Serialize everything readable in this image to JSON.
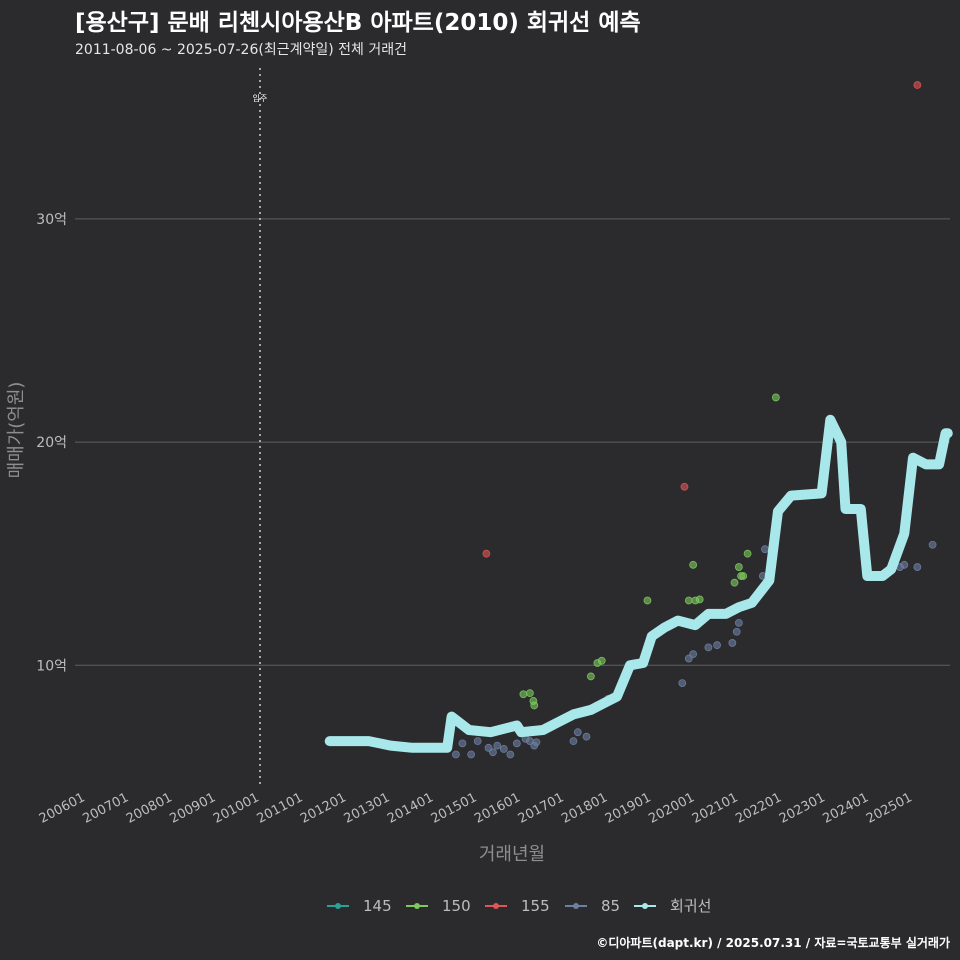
{
  "chart_data": {
    "type": "scatter",
    "title": "[용산구] 문배 리첸시아용산B 아파트(2010) 회귀선 예측",
    "subtitle": "2011-08-06 ~ 2025-07-26(최근계약일) 전체 거래건",
    "xlabel": "거래년월",
    "ylabel": "매매가(억원)",
    "ylim": [
      4.5,
      36
    ],
    "xlim": [
      2005.75,
      2025.85
    ],
    "y_ticks": [
      {
        "value": 10,
        "label": "10억"
      },
      {
        "value": 20,
        "label": "20억"
      },
      {
        "value": 30,
        "label": "30억"
      }
    ],
    "x_ticks": [
      {
        "value": 2006,
        "label": "200601"
      },
      {
        "value": 2007,
        "label": "200701"
      },
      {
        "value": 2008,
        "label": "200801"
      },
      {
        "value": 2009,
        "label": "200901"
      },
      {
        "value": 2010,
        "label": "201001"
      },
      {
        "value": 2011,
        "label": "201101"
      },
      {
        "value": 2012,
        "label": "201201"
      },
      {
        "value": 2013,
        "label": "201301"
      },
      {
        "value": 2014,
        "label": "201401"
      },
      {
        "value": 2015,
        "label": "201501"
      },
      {
        "value": 2016,
        "label": "201601"
      },
      {
        "value": 2017,
        "label": "201701"
      },
      {
        "value": 2018,
        "label": "201801"
      },
      {
        "value": 2019,
        "label": "201901"
      },
      {
        "value": 2020,
        "label": "202001"
      },
      {
        "value": 2021,
        "label": "202101"
      },
      {
        "value": 2022,
        "label": "202201"
      },
      {
        "value": 2023,
        "label": "202301"
      },
      {
        "value": 2024,
        "label": "202401"
      },
      {
        "value": 2025,
        "label": "202501"
      }
    ],
    "annotation": {
      "x": 2010.0,
      "label": "입주"
    },
    "legend_position": "bottom",
    "series": [
      {
        "name": "145",
        "color": "#2aa198",
        "points": []
      },
      {
        "name": "150",
        "color": "#7dc95e",
        "points": [
          [
            2016.05,
            8.7
          ],
          [
            2016.2,
            8.75
          ],
          [
            2016.28,
            8.4
          ],
          [
            2016.3,
            8.2
          ],
          [
            2017.6,
            9.5
          ],
          [
            2017.75,
            10.1
          ],
          [
            2017.85,
            10.2
          ],
          [
            2018.9,
            12.9
          ],
          [
            2019.85,
            12.9
          ],
          [
            2019.95,
            14.5
          ],
          [
            2020.0,
            12.9
          ],
          [
            2020.1,
            12.95
          ],
          [
            2020.9,
            13.7
          ],
          [
            2021.0,
            14.4
          ],
          [
            2021.05,
            14.0
          ],
          [
            2021.1,
            14.0
          ],
          [
            2021.2,
            15.0
          ],
          [
            2021.85,
            22.0
          ],
          [
            2024.9,
            17.4
          ]
        ]
      },
      {
        "name": "155",
        "color": "#e05555",
        "points": [
          [
            2015.2,
            15.0
          ],
          [
            2019.75,
            18.0
          ],
          [
            2025.1,
            36.0
          ]
        ]
      },
      {
        "name": "85",
        "color": "#6d7fa3",
        "points": [
          [
            2014.5,
            6.0
          ],
          [
            2014.65,
            6.5
          ],
          [
            2014.85,
            6.0
          ],
          [
            2015.0,
            6.6
          ],
          [
            2015.25,
            6.3
          ],
          [
            2015.35,
            6.1
          ],
          [
            2015.45,
            6.4
          ],
          [
            2015.6,
            6.25
          ],
          [
            2015.75,
            6.0
          ],
          [
            2015.9,
            6.5
          ],
          [
            2016.1,
            6.7
          ],
          [
            2016.2,
            6.6
          ],
          [
            2016.3,
            6.4
          ],
          [
            2016.35,
            6.55
          ],
          [
            2017.2,
            6.6
          ],
          [
            2017.3,
            7.0
          ],
          [
            2017.5,
            6.8
          ],
          [
            2018.0,
            8.5
          ],
          [
            2018.4,
            9.6
          ],
          [
            2019.7,
            9.2
          ],
          [
            2019.85,
            10.3
          ],
          [
            2019.95,
            10.5
          ],
          [
            2020.3,
            10.8
          ],
          [
            2020.5,
            10.9
          ],
          [
            2020.85,
            11.0
          ],
          [
            2020.95,
            11.5
          ],
          [
            2021.0,
            11.9
          ],
          [
            2021.55,
            14.0
          ],
          [
            2021.6,
            15.2
          ],
          [
            2024.7,
            14.4
          ],
          [
            2024.8,
            14.5
          ],
          [
            2025.1,
            14.4
          ],
          [
            2025.45,
            15.4
          ]
        ]
      }
    ],
    "regression": {
      "name": "회귀선",
      "color": "#a9e8ea",
      "points": [
        [
          2011.6,
          6.6
        ],
        [
          2012.1,
          6.6
        ],
        [
          2012.5,
          6.6
        ],
        [
          2013.0,
          6.4
        ],
        [
          2013.5,
          6.3
        ],
        [
          2014.0,
          6.3
        ],
        [
          2014.3,
          6.3
        ],
        [
          2014.4,
          7.7
        ],
        [
          2014.8,
          7.1
        ],
        [
          2015.3,
          7.0
        ],
        [
          2015.9,
          7.3
        ],
        [
          2016.0,
          7.0
        ],
        [
          2016.5,
          7.1
        ],
        [
          2016.8,
          7.4
        ],
        [
          2017.2,
          7.8
        ],
        [
          2017.6,
          8.0
        ],
        [
          2017.9,
          8.3
        ],
        [
          2018.2,
          8.6
        ],
        [
          2018.5,
          10.0
        ],
        [
          2018.8,
          10.1
        ],
        [
          2019.0,
          11.3
        ],
        [
          2019.3,
          11.7
        ],
        [
          2019.6,
          12.0
        ],
        [
          2020.0,
          11.8
        ],
        [
          2020.3,
          12.3
        ],
        [
          2020.7,
          12.3
        ],
        [
          2021.0,
          12.6
        ],
        [
          2021.3,
          12.8
        ],
        [
          2021.7,
          13.8
        ],
        [
          2021.9,
          16.9
        ],
        [
          2022.2,
          17.6
        ],
        [
          2022.9,
          17.7
        ],
        [
          2023.1,
          21.0
        ],
        [
          2023.35,
          20.0
        ],
        [
          2023.45,
          17.0
        ],
        [
          2023.8,
          17.0
        ],
        [
          2023.95,
          14.0
        ],
        [
          2024.3,
          14.0
        ],
        [
          2024.5,
          14.3
        ],
        [
          2024.8,
          15.9
        ],
        [
          2025.0,
          19.3
        ],
        [
          2025.3,
          19.0
        ],
        [
          2025.6,
          19.0
        ],
        [
          2025.75,
          20.4
        ],
        [
          2025.8,
          20.4
        ]
      ]
    }
  },
  "caption": "©디아파트(dapt.kr) / 2025.07.31 / 자료=국토교통부 실거래가"
}
